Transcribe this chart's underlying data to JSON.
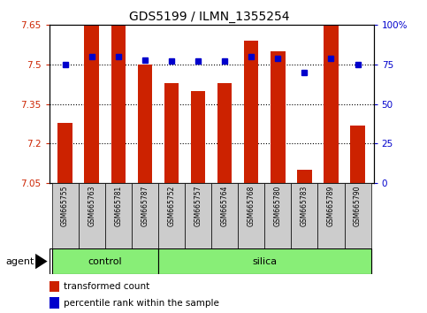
{
  "title": "GDS5199 / ILMN_1355254",
  "samples": [
    "GSM665755",
    "GSM665763",
    "GSM665781",
    "GSM665787",
    "GSM665752",
    "GSM665757",
    "GSM665764",
    "GSM665768",
    "GSM665780",
    "GSM665783",
    "GSM665789",
    "GSM665790"
  ],
  "red_values": [
    7.28,
    7.65,
    7.65,
    7.5,
    7.43,
    7.4,
    7.43,
    7.59,
    7.55,
    7.1,
    7.65,
    7.27
  ],
  "blue_values": [
    75,
    80,
    80,
    78,
    77,
    77,
    77,
    80,
    79,
    70,
    79,
    75
  ],
  "ymin": 7.05,
  "ymax": 7.65,
  "yticks": [
    7.05,
    7.2,
    7.35,
    7.5,
    7.65
  ],
  "ytick_labels": [
    "7.05",
    "7.2",
    "7.35",
    "7.5",
    "7.65"
  ],
  "y2ticks": [
    0,
    25,
    50,
    75,
    100
  ],
  "y2tick_labels": [
    "0",
    "25",
    "50",
    "75",
    "100%"
  ],
  "y2min": 0,
  "y2max": 100,
  "control_count": 4,
  "silica_count": 8,
  "bar_color": "#cc2200",
  "dot_color": "#0000cc",
  "green_bg": "#88ee77",
  "label_bg": "#cccccc",
  "legend_red": "transformed count",
  "legend_blue": "percentile rank within the sample",
  "agent_label": "agent",
  "grid_lines": [
    7.2,
    7.35,
    7.5
  ],
  "bar_width": 0.55
}
